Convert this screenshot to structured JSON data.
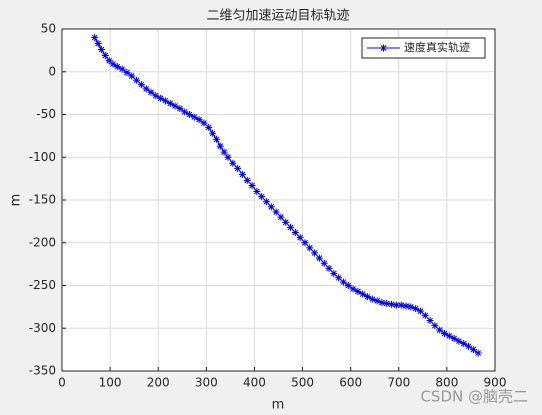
{
  "chart_data": {
    "type": "line",
    "title": "二维匀加速运动目标轨迹",
    "x_label": "m",
    "y_label": "m",
    "x": [
      68,
      75,
      82,
      90,
      98,
      106,
      115,
      125,
      135,
      145,
      155,
      165,
      175,
      185,
      195,
      205,
      215,
      225,
      235,
      245,
      255,
      265,
      275,
      285,
      295,
      305,
      313,
      321,
      329,
      337,
      345,
      355,
      365,
      375,
      385,
      395,
      405,
      415,
      425,
      435,
      445,
      455,
      465,
      475,
      485,
      495,
      505,
      515,
      525,
      535,
      545,
      555,
      565,
      575,
      585,
      595,
      605,
      615,
      625,
      635,
      645,
      655,
      665,
      675,
      685,
      695,
      705,
      715,
      725,
      735,
      745,
      755,
      765,
      775,
      785,
      795,
      805,
      815,
      825,
      835,
      845,
      855,
      865
    ],
    "series": [
      {
        "name": "速度真实轨迹",
        "color": "#0000ff",
        "values": [
          40,
          33,
          26,
          19,
          13,
          9,
          6,
          3,
          -1,
          -5,
          -10,
          -15,
          -20,
          -24,
          -28,
          -31,
          -34,
          -37,
          -40,
          -43,
          -47,
          -50,
          -53,
          -56,
          -60,
          -65,
          -72,
          -79,
          -87,
          -94,
          -100,
          -107,
          -113,
          -120,
          -127,
          -133,
          -140,
          -146,
          -152,
          -158,
          -164,
          -170,
          -176,
          -182,
          -188,
          -194,
          -200,
          -206,
          -212,
          -218,
          -224,
          -230,
          -236,
          -241,
          -246,
          -250,
          -254,
          -257,
          -260,
          -263,
          -266,
          -268,
          -270,
          -271,
          -272,
          -273,
          -273,
          -274,
          -275,
          -277,
          -280,
          -285,
          -291,
          -297,
          -302,
          -306,
          -309,
          -312,
          -315,
          -318,
          -321,
          -325,
          -329
        ]
      }
    ],
    "xlim": [
      0,
      900
    ],
    "xticks": [
      0,
      100,
      200,
      300,
      400,
      500,
      600,
      700,
      800,
      900
    ],
    "ylim": [
      -350,
      50
    ],
    "yticks": [
      -350,
      -300,
      -250,
      -200,
      -150,
      -100,
      -50,
      0,
      50
    ],
    "grid": true,
    "legend": "top-right",
    "watermark": "CSDN @脑壳二"
  }
}
